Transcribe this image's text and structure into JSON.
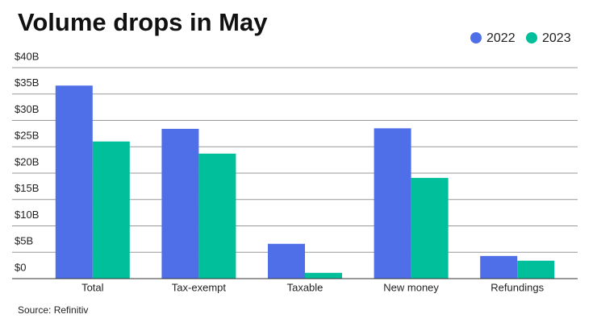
{
  "chart_data": {
    "type": "bar",
    "title": "Volume drops in May",
    "source": "Source: Refinitiv",
    "categories": [
      "Total",
      "Tax-exempt",
      "Taxable",
      "New money",
      "Refundings"
    ],
    "series": [
      {
        "name": "2022",
        "color": "#4f6fe8",
        "values": [
          36.6,
          28.4,
          6.6,
          28.5,
          4.3
        ]
      },
      {
        "name": "2023",
        "color": "#00bf9a",
        "values": [
          26.0,
          23.7,
          1.1,
          19.1,
          3.4
        ]
      }
    ],
    "ylim": [
      0,
      40
    ],
    "yticks": [
      {
        "value": 0,
        "label": "$0"
      },
      {
        "value": 5,
        "label": "$5B"
      },
      {
        "value": 10,
        "label": "$10B"
      },
      {
        "value": 15,
        "label": "$15B"
      },
      {
        "value": 20,
        "label": "$20B"
      },
      {
        "value": 25,
        "label": "$25B"
      },
      {
        "value": 30,
        "label": "$30B"
      },
      {
        "value": 35,
        "label": "$35B"
      },
      {
        "value": 40,
        "label": "$40B"
      }
    ],
    "grid": true
  }
}
